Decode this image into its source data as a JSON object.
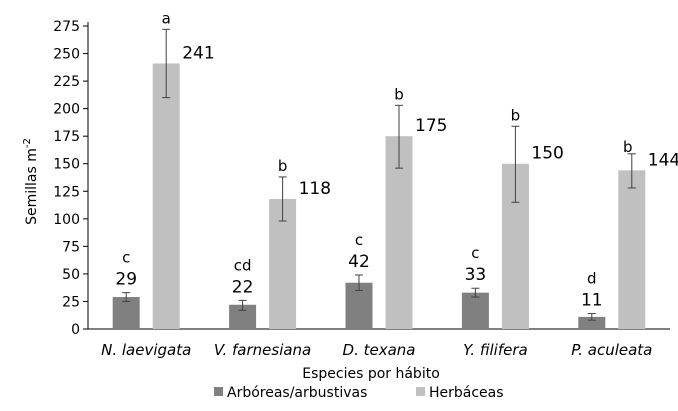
{
  "chart_data": {
    "type": "bar",
    "title": "",
    "xlabel": "Especies por hábito",
    "ylabel": "Semillas m",
    "ylabel_superscript": "-2",
    "ylim": [
      0,
      275
    ],
    "yticks": [
      0,
      25,
      50,
      75,
      100,
      125,
      150,
      175,
      200,
      225,
      250,
      275
    ],
    "grid": false,
    "legend_position": "bottom",
    "categories": [
      "N. laevigata",
      "V. farnesiana",
      "D. texana",
      "Y. filifera",
      "P. aculeata"
    ],
    "series": [
      {
        "name": "Arbóreas/arbustivas",
        "color": "#808080",
        "values": [
          29,
          22,
          42,
          33,
          11
        ],
        "labels": [
          "29",
          "22",
          "42",
          "33",
          "11"
        ],
        "error_low": [
          25,
          17,
          35,
          29,
          8
        ],
        "error_high": [
          33,
          26,
          49,
          37,
          14
        ],
        "letters": [
          "c",
          "cd",
          "c",
          "c",
          "d"
        ]
      },
      {
        "name": "Herbáceas",
        "color": "#c0c0c0",
        "values": [
          241,
          118,
          175,
          150,
          144
        ],
        "labels": [
          "241",
          "118",
          "175",
          "150",
          "144"
        ],
        "error_low": [
          210,
          98,
          146,
          115,
          128
        ],
        "error_high": [
          272,
          138,
          203,
          184,
          159
        ],
        "letters": [
          "a",
          "b",
          "b",
          "b",
          "b"
        ]
      }
    ]
  }
}
